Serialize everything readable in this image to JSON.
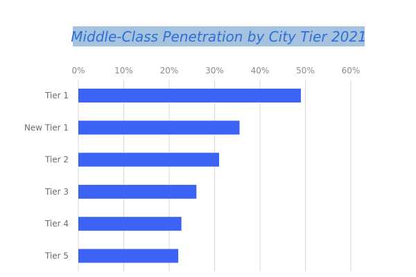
{
  "chart_data": {
    "type": "bar",
    "orientation": "horizontal",
    "title": "Middle-Class Penetration by City Tier 2021",
    "categories": [
      "Tier 1",
      "New Tier 1",
      "Tier 2",
      "Tier 3",
      "Tier 4",
      "Tier 5"
    ],
    "values": [
      49,
      35.5,
      31,
      26,
      22.7,
      22
    ],
    "xlim": [
      0,
      60
    ],
    "x_ticks": [
      0,
      10,
      20,
      30,
      40,
      50,
      60
    ],
    "x_tick_labels": [
      "0%",
      "10%",
      "20%",
      "30%",
      "40%",
      "50%",
      "60%"
    ],
    "x_axis_position": "top",
    "xlabel": "",
    "ylabel": "",
    "grid": true,
    "legend": "none",
    "colors": {
      "bar": "#3d63f5",
      "title_text": "#2f6fd8",
      "title_background": "#a5c2de",
      "grid": "#d9d9d9",
      "tick_label": "#8c8c8c",
      "category_label": "#6b6b6b"
    }
  }
}
